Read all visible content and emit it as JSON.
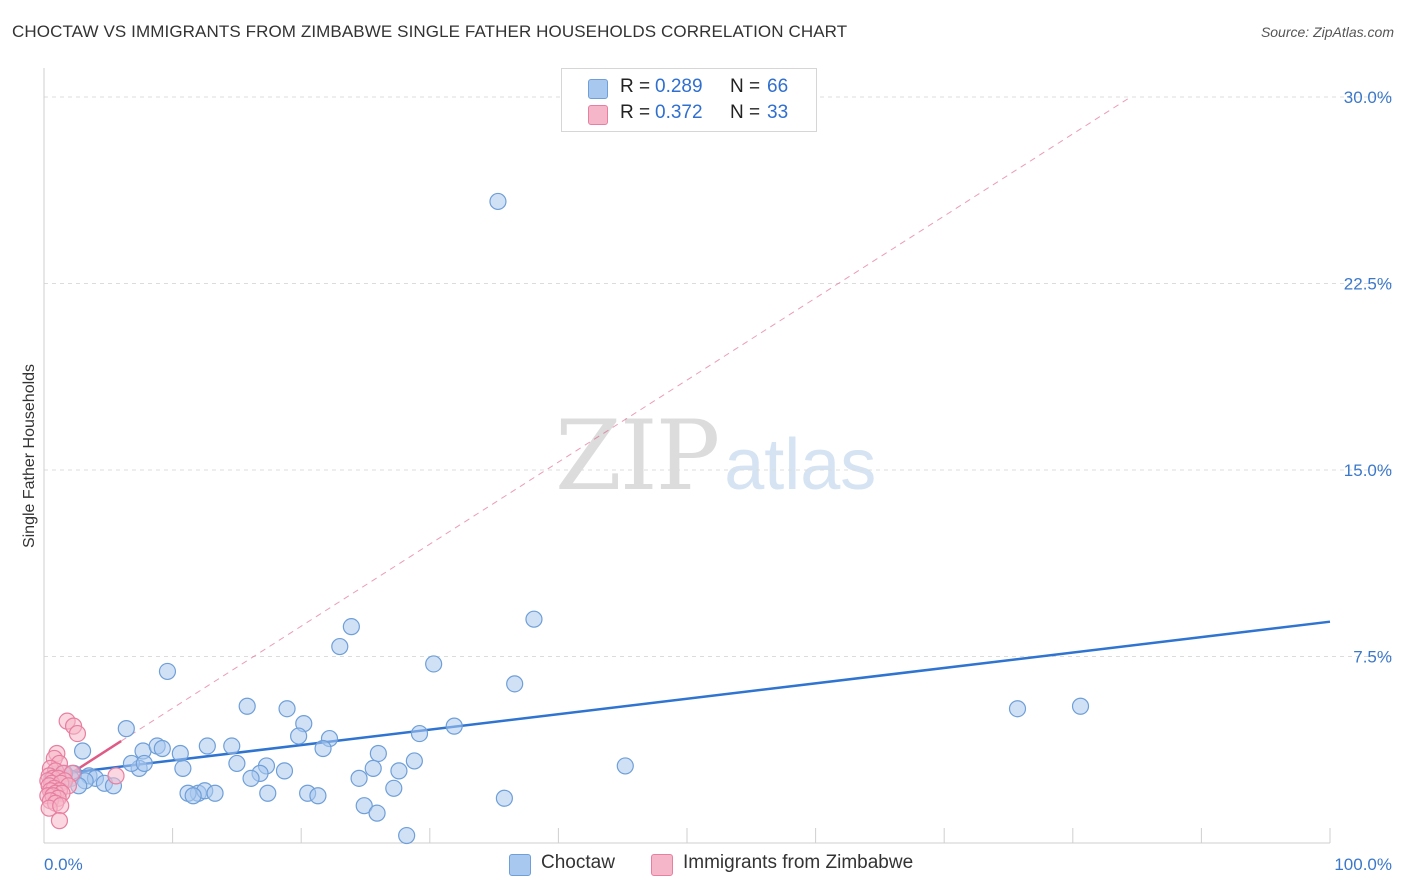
{
  "title": "CHOCTAW VS IMMIGRANTS FROM ZIMBABWE SINGLE FATHER HOUSEHOLDS CORRELATION CHART",
  "source": "Source: ZipAtlas.com",
  "watermark": {
    "zip": "ZIP",
    "atlas": "atlas"
  },
  "legend_top": [
    {
      "series": "Choctaw",
      "r_label": "R =",
      "r_value": "0.289",
      "n_label": "N =",
      "n_value": "66"
    },
    {
      "series": "Immigrants from Zimbabwe",
      "r_label": "R =",
      "r_value": "0.372",
      "n_label": "N =",
      "n_value": "33"
    }
  ],
  "legend_bottom": [
    {
      "label": "Choctaw"
    },
    {
      "label": "Immigrants from Zimbabwe"
    }
  ],
  "colors": {
    "choctaw_fill": "#a9c8ef",
    "choctaw_stroke": "#6f9fd8",
    "choctaw_line": "#2f74d0",
    "zimbabwe_fill": "#f5b6c9",
    "zimbabwe_stroke": "#e77fa0",
    "zimbabwe_line": "#e05a86",
    "grid": "#dcdcdc",
    "tick_text": "#3b78c9"
  },
  "chart_data": {
    "type": "scatter",
    "title": "CHOCTAW VS IMMIGRANTS FROM ZIMBABWE SINGLE FATHER HOUSEHOLDS CORRELATION CHART",
    "xlabel": "",
    "ylabel": "Single Father Households",
    "xlim": [
      0,
      100
    ],
    "ylim": [
      0,
      30
    ],
    "y_ticks": [
      7.5,
      15.0,
      22.5,
      30.0
    ],
    "y_tick_labels": [
      "7.5%",
      "15.0%",
      "22.5%",
      "30.0%"
    ],
    "x_tick_labels": [
      "0.0%",
      "100.0%"
    ],
    "grid": true,
    "series": [
      {
        "name": "Choctaw",
        "points": [
          [
            35.3,
            25.8
          ],
          [
            38.1,
            9.0
          ],
          [
            23.9,
            8.7
          ],
          [
            23.0,
            7.9
          ],
          [
            9.6,
            6.9
          ],
          [
            30.3,
            7.2
          ],
          [
            36.6,
            6.4
          ],
          [
            15.8,
            5.5
          ],
          [
            18.9,
            5.4
          ],
          [
            20.2,
            4.8
          ],
          [
            31.9,
            4.7
          ],
          [
            6.4,
            4.6
          ],
          [
            29.2,
            4.4
          ],
          [
            7.7,
            3.7
          ],
          [
            12.7,
            3.9
          ],
          [
            3.0,
            3.7
          ],
          [
            8.8,
            3.9
          ],
          [
            9.2,
            3.8
          ],
          [
            10.6,
            3.6
          ],
          [
            22.2,
            4.2
          ],
          [
            28.8,
            3.3
          ],
          [
            26.0,
            3.6
          ],
          [
            21.7,
            3.8
          ],
          [
            19.8,
            4.3
          ],
          [
            14.6,
            3.9
          ],
          [
            15.0,
            3.2
          ],
          [
            10.8,
            3.0
          ],
          [
            7.4,
            3.0
          ],
          [
            6.8,
            3.2
          ],
          [
            7.8,
            3.2
          ],
          [
            17.3,
            3.1
          ],
          [
            16.8,
            2.8
          ],
          [
            18.7,
            2.9
          ],
          [
            25.6,
            3.0
          ],
          [
            27.6,
            2.9
          ],
          [
            24.5,
            2.6
          ],
          [
            16.1,
            2.6
          ],
          [
            2.3,
            2.8
          ],
          [
            3.5,
            2.7
          ],
          [
            4.0,
            2.6
          ],
          [
            4.7,
            2.4
          ],
          [
            5.4,
            2.3
          ],
          [
            1.4,
            2.5
          ],
          [
            2.1,
            2.6
          ],
          [
            1.0,
            2.7
          ],
          [
            0.6,
            2.6
          ],
          [
            12.0,
            2.0
          ],
          [
            12.5,
            2.1
          ],
          [
            11.2,
            2.0
          ],
          [
            13.3,
            2.0
          ],
          [
            11.6,
            1.9
          ],
          [
            17.4,
            2.0
          ],
          [
            20.5,
            2.0
          ],
          [
            21.3,
            1.9
          ],
          [
            24.9,
            1.5
          ],
          [
            27.2,
            2.2
          ],
          [
            35.8,
            1.8
          ],
          [
            45.2,
            3.1
          ],
          [
            25.9,
            1.2
          ],
          [
            28.2,
            0.3
          ],
          [
            75.7,
            5.4
          ],
          [
            80.6,
            5.5
          ],
          [
            0.8,
            2.4
          ],
          [
            1.6,
            2.8
          ],
          [
            3.2,
            2.5
          ],
          [
            2.7,
            2.3
          ]
        ]
      },
      {
        "name": "Immigrants from Zimbabwe",
        "points": [
          [
            1.8,
            4.9
          ],
          [
            2.3,
            4.7
          ],
          [
            2.6,
            4.4
          ],
          [
            1.0,
            3.6
          ],
          [
            0.8,
            3.4
          ],
          [
            1.2,
            3.2
          ],
          [
            0.5,
            3.0
          ],
          [
            0.9,
            2.9
          ],
          [
            1.5,
            2.8
          ],
          [
            2.2,
            2.8
          ],
          [
            5.6,
            2.7
          ],
          [
            0.4,
            2.7
          ],
          [
            0.7,
            2.6
          ],
          [
            1.1,
            2.6
          ],
          [
            1.6,
            2.5
          ],
          [
            0.3,
            2.5
          ],
          [
            0.6,
            2.4
          ],
          [
            1.3,
            2.4
          ],
          [
            1.9,
            2.3
          ],
          [
            0.4,
            2.3
          ],
          [
            0.8,
            2.2
          ],
          [
            1.2,
            2.1
          ],
          [
            0.5,
            2.1
          ],
          [
            0.9,
            2.0
          ],
          [
            1.4,
            2.0
          ],
          [
            0.3,
            1.9
          ],
          [
            0.7,
            1.9
          ],
          [
            1.1,
            1.8
          ],
          [
            0.5,
            1.7
          ],
          [
            0.9,
            1.6
          ],
          [
            0.4,
            1.4
          ],
          [
            1.3,
            1.5
          ],
          [
            1.2,
            0.9
          ]
        ]
      }
    ],
    "trend_lines": [
      {
        "series": "Choctaw",
        "style": "solid",
        "from": [
          0,
          2.7
        ],
        "to": [
          100,
          8.9
        ]
      },
      {
        "series": "Immigrants from Zimbabwe",
        "style": "solid",
        "from": [
          0,
          2.1
        ],
        "to": [
          6.0,
          4.1
        ]
      },
      {
        "series": "Immigrants from Zimbabwe",
        "style": "dashed",
        "from": [
          6.0,
          4.1
        ],
        "to": [
          84.5,
          30.0
        ]
      }
    ]
  }
}
